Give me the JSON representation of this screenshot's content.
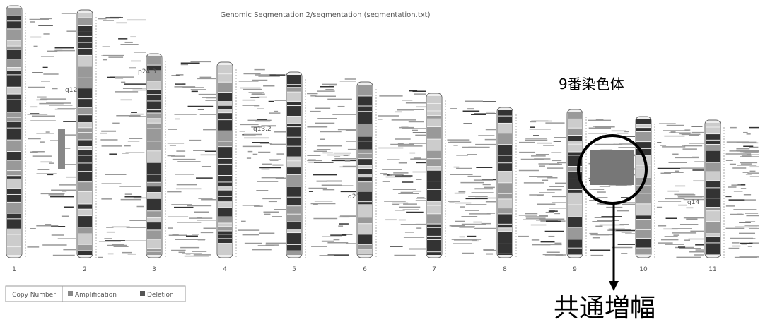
{
  "header": {
    "title": "Genomic Segmentation 2/segmentation (segmentation.txt)"
  },
  "chromosomes": [
    {
      "label": "1"
    },
    {
      "label": "2"
    },
    {
      "label": "3"
    },
    {
      "label": "4"
    },
    {
      "label": "5"
    },
    {
      "label": "6"
    },
    {
      "label": "7"
    },
    {
      "label": "8"
    },
    {
      "label": "9"
    },
    {
      "label": "10"
    },
    {
      "label": "11"
    }
  ],
  "band_labels": [
    "p24.3",
    "q12",
    "q13.2",
    "q21",
    "q14"
  ],
  "legend": {
    "title": "Copy Number",
    "items": [
      "Amplification",
      "Deletion"
    ]
  },
  "annotations": {
    "chromosome": "9番染色体",
    "common": "共通増幅"
  }
}
